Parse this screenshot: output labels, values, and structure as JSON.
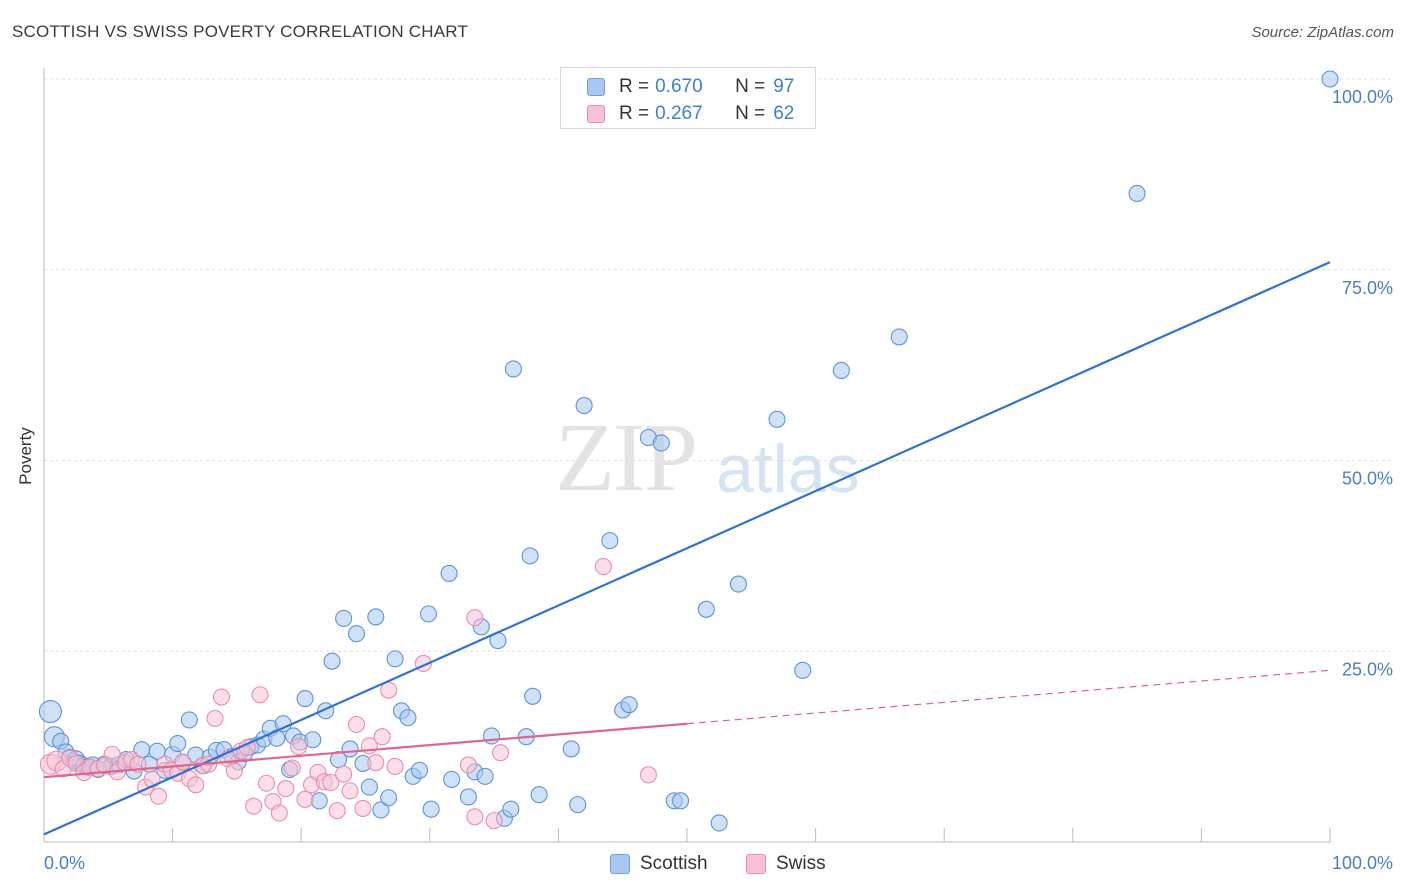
{
  "title": "SCOTTISH VS SWISS POVERTY CORRELATION CHART",
  "source": "Source: ZipAtlas.com",
  "watermark": {
    "zip": "ZIP",
    "atlas": "atlas"
  },
  "stats": [
    {
      "r_label": "R =",
      "r_value": "0.670",
      "n_label": "N =",
      "n_value": "97",
      "color": "#a9c7ef",
      "border": "#6f9ede"
    },
    {
      "r_label": "R =",
      "r_value": "0.267",
      "n_label": "N =",
      "n_value": "62",
      "color": "#f8c2d3",
      "border": "#e98eaa"
    }
  ],
  "legend": [
    {
      "label": "Scottish",
      "color": "#a9c7ef",
      "border": "#6f9ede"
    },
    {
      "label": "Swiss",
      "color": "#f8c2d3",
      "border": "#e98eaa"
    }
  ],
  "chart_data": {
    "type": "scatter",
    "title": "SCOTTISH VS SWISS POVERTY CORRELATION CHART",
    "xlabel": "",
    "ylabel": "Poverty",
    "xlim": [
      0,
      100
    ],
    "ylim": [
      0,
      100
    ],
    "x_tick_labels": [
      "0.0%",
      "100.0%"
    ],
    "y_ticks": [
      25,
      50,
      75,
      100
    ],
    "y_tick_labels": [
      "25.0%",
      "50.0%",
      "75.0%",
      "100.0%"
    ],
    "grid": true,
    "series": [
      {
        "name": "Scottish",
        "color": "#5b93dd",
        "fill": "#a9c7ef",
        "trend": {
          "x0": 0,
          "y0": 1,
          "x1": 100,
          "y1": 76,
          "color": "#2e72d2",
          "dashed_from": null
        },
        "points": [
          [
            0.5,
            17.1
          ],
          [
            0.8,
            13.8
          ],
          [
            1.3,
            13.2
          ],
          [
            1.7,
            11.8
          ],
          [
            2.0,
            11.1
          ],
          [
            2.3,
            10.6
          ],
          [
            2.5,
            10.9
          ],
          [
            2.8,
            10.3
          ],
          [
            3.1,
            10.0
          ],
          [
            3.4,
            9.8
          ],
          [
            3.8,
            10.1
          ],
          [
            4.2,
            9.5
          ],
          [
            4.7,
            10.2
          ],
          [
            5.2,
            9.9
          ],
          [
            5.8,
            10.1
          ],
          [
            6.4,
            10.8
          ],
          [
            7.0,
            9.3
          ],
          [
            7.6,
            12.1
          ],
          [
            8.2,
            10.2
          ],
          [
            8.8,
            11.9
          ],
          [
            9.4,
            9.4
          ],
          [
            10.0,
            11.5
          ],
          [
            10.4,
            12.9
          ],
          [
            10.8,
            10.4
          ],
          [
            11.3,
            16.0
          ],
          [
            11.8,
            11.4
          ],
          [
            12.4,
            10.0
          ],
          [
            12.9,
            11.1
          ],
          [
            13.4,
            12.0
          ],
          [
            14.0,
            12.1
          ],
          [
            14.6,
            11.2
          ],
          [
            15.1,
            10.5
          ],
          [
            15.6,
            11.6
          ],
          [
            16.1,
            12.5
          ],
          [
            16.6,
            12.7
          ],
          [
            17.1,
            13.5
          ],
          [
            17.6,
            14.9
          ],
          [
            18.1,
            13.6
          ],
          [
            18.6,
            15.5
          ],
          [
            19.1,
            9.5
          ],
          [
            19.4,
            13.9
          ],
          [
            19.9,
            13.1
          ],
          [
            20.3,
            18.8
          ],
          [
            20.9,
            13.4
          ],
          [
            21.4,
            5.4
          ],
          [
            21.9,
            17.2
          ],
          [
            22.4,
            23.7
          ],
          [
            22.9,
            10.8
          ],
          [
            23.3,
            29.3
          ],
          [
            23.8,
            12.2
          ],
          [
            24.3,
            27.3
          ],
          [
            24.8,
            10.3
          ],
          [
            25.3,
            7.2
          ],
          [
            25.8,
            29.5
          ],
          [
            26.2,
            4.2
          ],
          [
            26.8,
            5.8
          ],
          [
            27.3,
            24.0
          ],
          [
            27.8,
            17.2
          ],
          [
            28.3,
            16.3
          ],
          [
            28.7,
            8.6
          ],
          [
            29.2,
            9.4
          ],
          [
            29.9,
            29.9
          ],
          [
            30.1,
            4.3
          ],
          [
            31.5,
            35.2
          ],
          [
            31.7,
            8.2
          ],
          [
            33.0,
            5.9
          ],
          [
            33.5,
            9.2
          ],
          [
            34.0,
            28.2
          ],
          [
            34.3,
            8.6
          ],
          [
            34.8,
            13.9
          ],
          [
            35.3,
            26.4
          ],
          [
            35.8,
            3.1
          ],
          [
            36.3,
            4.3
          ],
          [
            36.5,
            62.0
          ],
          [
            37.5,
            13.8
          ],
          [
            37.8,
            37.5
          ],
          [
            38.0,
            19.1
          ],
          [
            38.5,
            6.2
          ],
          [
            41.0,
            12.2
          ],
          [
            41.5,
            4.9
          ],
          [
            42.0,
            57.2
          ],
          [
            44.0,
            39.5
          ],
          [
            45.0,
            17.3
          ],
          [
            45.5,
            18.0
          ],
          [
            47.0,
            53.0
          ],
          [
            48.0,
            52.3
          ],
          [
            49.0,
            5.4
          ],
          [
            49.5,
            5.4
          ],
          [
            51.5,
            30.5
          ],
          [
            52.5,
            2.5
          ],
          [
            54.0,
            33.8
          ],
          [
            57.0,
            55.4
          ],
          [
            59.0,
            22.5
          ],
          [
            62.0,
            61.8
          ],
          [
            66.5,
            66.2
          ],
          [
            85.0,
            85.0
          ],
          [
            100.0,
            100.0
          ]
        ]
      },
      {
        "name": "Swiss",
        "color": "#e98eaa",
        "fill": "#f8c2d3",
        "trend": {
          "x0": 0,
          "y0": 8.5,
          "x1": 100,
          "y1": 22.5,
          "color": "#e0658d",
          "dashed_from": 50
        },
        "points": [
          [
            0.5,
            10.2
          ],
          [
            1.0,
            10.6
          ],
          [
            1.5,
            9.6
          ],
          [
            2.0,
            11.0
          ],
          [
            2.5,
            10.3
          ],
          [
            3.1,
            9.1
          ],
          [
            3.6,
            9.8
          ],
          [
            4.2,
            9.6
          ],
          [
            4.7,
            10.0
          ],
          [
            5.3,
            11.5
          ],
          [
            5.7,
            9.2
          ],
          [
            6.3,
            10.4
          ],
          [
            6.8,
            10.8
          ],
          [
            7.3,
            10.2
          ],
          [
            7.9,
            7.2
          ],
          [
            8.4,
            8.2
          ],
          [
            8.9,
            6.0
          ],
          [
            9.4,
            10.2
          ],
          [
            9.9,
            9.4
          ],
          [
            10.4,
            9.0
          ],
          [
            10.8,
            10.5
          ],
          [
            11.3,
            8.3
          ],
          [
            11.8,
            7.5
          ],
          [
            12.3,
            10.0
          ],
          [
            12.8,
            10.2
          ],
          [
            13.3,
            16.2
          ],
          [
            13.8,
            19.0
          ],
          [
            14.3,
            10.9
          ],
          [
            14.8,
            9.3
          ],
          [
            15.3,
            11.9
          ],
          [
            15.8,
            12.4
          ],
          [
            16.3,
            4.7
          ],
          [
            16.8,
            19.3
          ],
          [
            17.3,
            7.7
          ],
          [
            17.8,
            5.3
          ],
          [
            18.3,
            3.8
          ],
          [
            18.8,
            7.0
          ],
          [
            19.3,
            9.7
          ],
          [
            19.8,
            12.5
          ],
          [
            20.3,
            5.6
          ],
          [
            20.8,
            7.5
          ],
          [
            21.3,
            9.1
          ],
          [
            21.8,
            7.9
          ],
          [
            22.3,
            7.8
          ],
          [
            22.8,
            4.1
          ],
          [
            23.3,
            8.9
          ],
          [
            23.8,
            6.7
          ],
          [
            24.3,
            15.4
          ],
          [
            24.8,
            4.4
          ],
          [
            25.3,
            12.6
          ],
          [
            25.8,
            10.4
          ],
          [
            26.3,
            13.8
          ],
          [
            26.8,
            19.9
          ],
          [
            27.3,
            9.9
          ],
          [
            29.5,
            23.4
          ],
          [
            33.0,
            10.1
          ],
          [
            33.5,
            29.4
          ],
          [
            33.5,
            3.3
          ],
          [
            35.0,
            2.8
          ],
          [
            35.5,
            11.7
          ],
          [
            43.5,
            36.1
          ],
          [
            47.0,
            8.8
          ]
        ]
      }
    ]
  }
}
